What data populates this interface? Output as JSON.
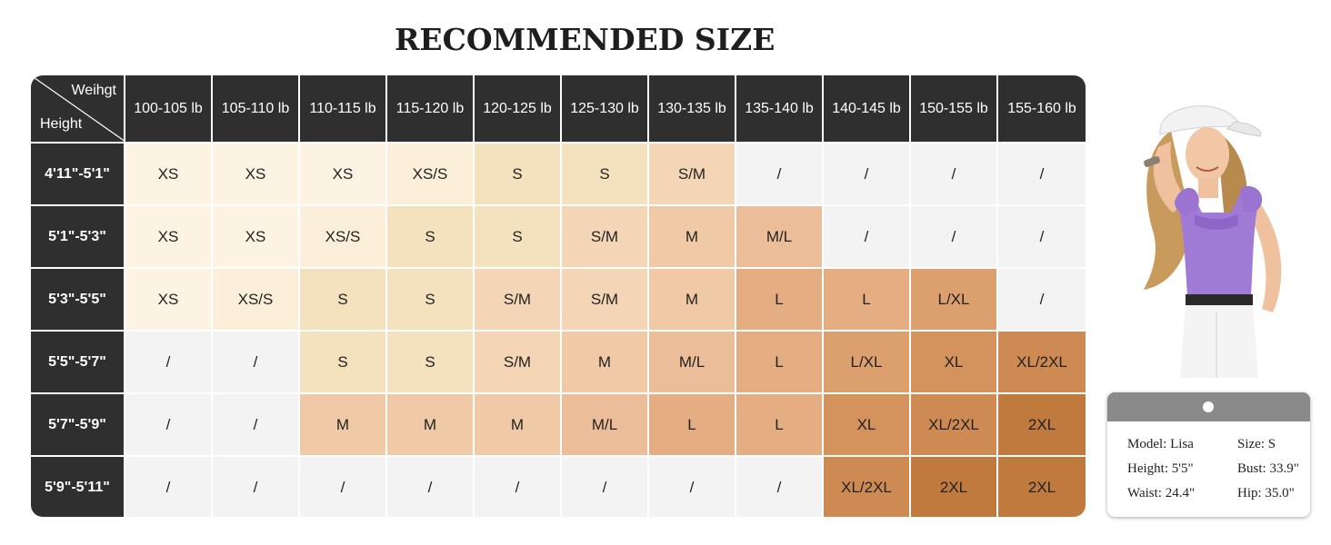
{
  "title": "RECOMMENDED SIZE",
  "table": {
    "corner": {
      "weight_label": "Weihgt",
      "height_label": "Height"
    },
    "weights": [
      "100-105 lb",
      "105-110 lb",
      "110-115 lb",
      "115-120 lb",
      "120-125 lb",
      "125-130 lb",
      "130-135 lb",
      "135-140 lb",
      "140-145 lb",
      "150-155 lb",
      "155-160 lb"
    ],
    "rows": [
      {
        "height": "4'11\"-5'1\"",
        "sizes": [
          "XS",
          "XS",
          "XS",
          "XS/S",
          "S",
          "S",
          "S/M",
          "/",
          "/",
          "/",
          "/"
        ]
      },
      {
        "height": "5'1\"-5'3\"",
        "sizes": [
          "XS",
          "XS",
          "XS/S",
          "S",
          "S",
          "S/M",
          "M",
          "M/L",
          "/",
          "/",
          "/"
        ]
      },
      {
        "height": "5'3\"-5'5\"",
        "sizes": [
          "XS",
          "XS/S",
          "S",
          "S",
          "S/M",
          "S/M",
          "M",
          "L",
          "L",
          "L/XL",
          "/"
        ]
      },
      {
        "height": "5'5\"-5'7\"",
        "sizes": [
          "/",
          "/",
          "S",
          "S",
          "S/M",
          "M",
          "M/L",
          "L",
          "L/XL",
          "XL",
          "XL/2XL"
        ]
      },
      {
        "height": "5'7\"-5'9\"",
        "sizes": [
          "/",
          "/",
          "M",
          "M",
          "M",
          "M/L",
          "L",
          "L",
          "XL",
          "XL/2XL",
          "2XL"
        ]
      },
      {
        "height": "5'9\"-5'11\"",
        "sizes": [
          "/",
          "/",
          "/",
          "/",
          "/",
          "/",
          "/",
          "/",
          "XL/2XL",
          "2XL",
          "2XL"
        ]
      }
    ]
  },
  "size_colors": {
    "XS": "#fdf3e3",
    "XS/S": "#fbefd9",
    "S": "#f4e1bd",
    "S/M": "#f4d5b5",
    "M": "#f0c9a6",
    "M/L": "#ebbd98",
    "L": "#e4ad82",
    "L/XL": "#dc9f6e",
    "XL": "#d4925c",
    "XL/2XL": "#cd8a52",
    "2XL": "#c17a3e",
    "/": "#f3f3f3"
  },
  "header_color": "#2f2f2f",
  "model": {
    "image_icon": "model-photo-purple-top",
    "name_label": "Model:",
    "name": "Lisa",
    "size_label": "Size:",
    "size": "S",
    "height_label": "Height:",
    "height": "5'5\"",
    "bust_label": "Bust:",
    "bust": "33.9\"",
    "waist_label": "Waist:",
    "waist": "24.4\"",
    "hip_label": "Hip:",
    "hip": "35.0\""
  }
}
